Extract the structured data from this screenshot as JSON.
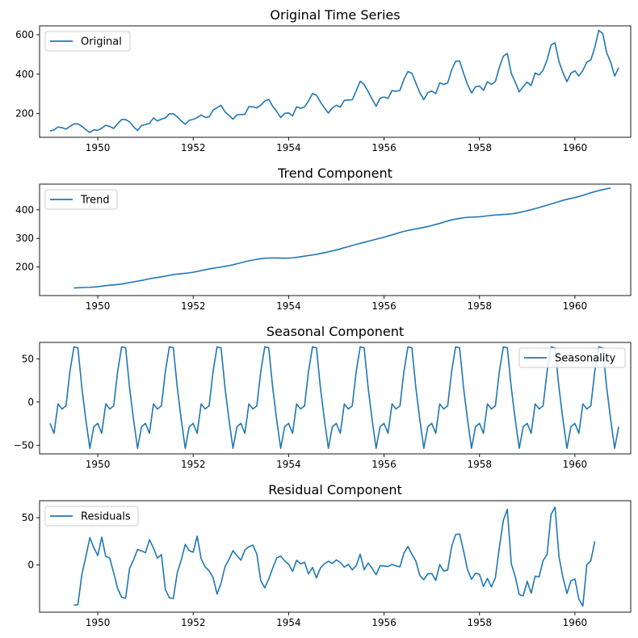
{
  "colors": {
    "line": "#1f77b4",
    "axes": "#000000",
    "legend_border": "#cccccc",
    "background": "#ffffff"
  },
  "chart_data": [
    {
      "type": "line",
      "title": "Original Time Series",
      "xlabel": "",
      "ylabel": "",
      "xlim": [
        1948.78,
        1961.17
      ],
      "ylim": [
        80,
        645
      ],
      "xticks": [
        1950,
        1952,
        1954,
        1956,
        1958,
        1960
      ],
      "yticks": [
        200,
        400,
        600
      ],
      "grid": false,
      "legend_position": "upper-left",
      "series": [
        {
          "name": "Original",
          "x_start": 1949.0,
          "x_step": 0.0833333,
          "values": [
            112,
            118,
            132,
            129,
            121,
            135,
            148,
            148,
            136,
            119,
            104,
            118,
            115,
            126,
            141,
            135,
            125,
            149,
            170,
            170,
            158,
            133,
            114,
            140,
            145,
            150,
            178,
            163,
            172,
            178,
            199,
            199,
            184,
            162,
            146,
            166,
            171,
            180,
            193,
            181,
            183,
            218,
            230,
            242,
            209,
            191,
            172,
            194,
            196,
            196,
            236,
            235,
            229,
            243,
            264,
            272,
            237,
            211,
            180,
            201,
            204,
            188,
            235,
            227,
            234,
            264,
            302,
            293,
            259,
            229,
            203,
            229,
            242,
            233,
            267,
            269,
            270,
            315,
            364,
            347,
            312,
            274,
            237,
            278,
            284,
            277,
            317,
            313,
            318,
            374,
            413,
            405,
            355,
            306,
            271,
            306,
            315,
            301,
            356,
            348,
            355,
            422,
            465,
            467,
            404,
            347,
            305,
            336,
            340,
            318,
            362,
            348,
            363,
            435,
            491,
            505,
            404,
            359,
            310,
            337,
            360,
            342,
            406,
            396,
            420,
            472,
            548,
            559,
            463,
            407,
            362,
            405,
            417,
            391,
            419,
            461,
            472,
            535,
            622,
            606,
            508,
            461,
            390,
            432
          ]
        }
      ]
    },
    {
      "type": "line",
      "title": "Trend Component",
      "xlabel": "",
      "ylabel": "",
      "xlim": [
        1948.78,
        1961.17
      ],
      "ylim": [
        100,
        490
      ],
      "xticks": [
        1950,
        1952,
        1954,
        1956,
        1958,
        1960
      ],
      "yticks": [
        200,
        300,
        400
      ],
      "grid": false,
      "legend_position": "upper-left",
      "series": [
        {
          "name": "Trend",
          "x_start": 1949.5,
          "x_step": 0.0833333,
          "values": [
            126.8,
            127.3,
            127.9,
            128.6,
            129.0,
            129.8,
            131.3,
            133.1,
            134.9,
            136.3,
            137.4,
            138.8,
            140.5,
            142.9,
            145.5,
            148.0,
            150.5,
            152.8,
            155.8,
            158.9,
            161.3,
            163.3,
            165.6,
            168.2,
            171.0,
            173.3,
            175.2,
            176.8,
            178.0,
            179.5,
            181.6,
            184.4,
            187.4,
            190.3,
            193.1,
            195.6,
            197.8,
            200.0,
            202.3,
            204.9,
            207.8,
            211.2,
            214.8,
            218.3,
            221.5,
            224.3,
            226.8,
            229.0,
            230.5,
            231.4,
            231.7,
            231.6,
            231.2,
            231.0,
            231.2,
            232.1,
            233.8,
            235.9,
            238.0,
            240.0,
            242.0,
            244.4,
            247.1,
            250.0,
            253.2,
            256.3,
            259.5,
            263.4,
            267.6,
            271.4,
            275.3,
            279.1,
            282.9,
            286.4,
            290.1,
            293.6,
            297.2,
            300.6,
            304.2,
            308.2,
            312.4,
            316.7,
            320.8,
            324.6,
            327.8,
            330.7,
            333.3,
            335.9,
            338.7,
            341.8,
            345.1,
            348.9,
            352.8,
            357.0,
            361.2,
            364.8,
            367.6,
            370.1,
            372.4,
            373.8,
            374.5,
            374.9,
            375.8,
            377.3,
            379.1,
            380.6,
            381.9,
            382.9,
            383.7,
            384.5,
            385.8,
            387.7,
            390.6,
            393.9,
            397.0,
            400.4,
            404.1,
            408.1,
            412.4,
            416.5,
            420.5,
            424.7,
            429.0,
            433.3,
            436.9,
            440.1,
            443.2,
            446.8,
            450.9,
            455.3,
            459.6,
            463.7,
            467.5,
            470.8,
            473.6,
            476.3
          ]
        }
      ]
    },
    {
      "type": "line",
      "title": "Seasonal Component",
      "xlabel": "",
      "ylabel": "",
      "xlim": [
        1948.78,
        1961.17
      ],
      "ylim": [
        -60,
        69
      ],
      "xticks": [
        1950,
        1952,
        1954,
        1956,
        1958,
        1960
      ],
      "yticks": [
        -50,
        0,
        50
      ],
      "grid": false,
      "legend_position": "upper-right",
      "series": [
        {
          "name": "Seasonality",
          "x_start": 1949.0,
          "x_step": 0.0833333,
          "pattern": [
            -24.7,
            -36.2,
            -2.2,
            -8.0,
            -4.5,
            35.4,
            63.8,
            62.8,
            16.5,
            -20.6,
            -53.6,
            -28.6
          ],
          "periods": 12
        }
      ]
    },
    {
      "type": "line",
      "title": "Residual Component",
      "xlabel": "",
      "ylabel": "",
      "xlim": [
        1948.78,
        1961.17
      ],
      "ylim": [
        -50,
        68
      ],
      "xticks": [
        1950,
        1952,
        1954,
        1956,
        1958,
        1960
      ],
      "yticks": [
        0,
        50
      ],
      "grid": false,
      "legend_position": "upper-left",
      "series": [
        {
          "name": "Residuals",
          "x_start": 1949.5,
          "x_step": 0.0833333,
          "values": [
            -42.6,
            -42.1,
            -10.0,
            8.6,
            28.9,
            18.5,
            9.9,
            29.4,
            9.0,
            7.4,
            -8.3,
            -25.0,
            -34.2,
            -35.5,
            -3.6,
            5.4,
            16.4,
            14.9,
            13.0,
            26.7,
            17.9,
            7.2,
            11.0,
            -26.0,
            -34.7,
            -35.5,
            -8.1,
            5.3,
            21.8,
            15.2,
            13.4,
            30.5,
            6.5,
            -2.0,
            -6.2,
            -13.5,
            -30.9,
            -19.4,
            -1.9,
            5.9,
            15.1,
            9.8,
            5.0,
            15.8,
            19.3,
            21.0,
            11.6,
            -16.7,
            -24.3,
            -14.9,
            -3.4,
            7.5,
            9.5,
            4.2,
            0.8,
            -6.9,
            5.0,
            1.2,
            2.9,
            -9.5,
            -2.6,
            -13.8,
            -3.2,
            1.1,
            4.0,
            1.5,
            5.3,
            2.7,
            -2.3,
            0.6,
            -5.2,
            -0.8,
            11.4,
            -5.1,
            2.0,
            -3.6,
            -10.4,
            -0.8,
            -1.2,
            -1.6,
            0.6,
            -0.9,
            -2.1,
            12.5,
            19.6,
            11.3,
            4.0,
            -11.3,
            -15.6,
            -9.4,
            -9.1,
            -16.5,
            0.3,
            -6.5,
            -5.5,
            19.6,
            32.2,
            32.8,
            14.8,
            -5.2,
            -15.2,
            -8.8,
            -9.9,
            -22.8,
            -14.3,
            -23.2,
            -13.5,
            18.6,
            47.1,
            58.9,
            1.4,
            -12.3,
            -31.4,
            -32.7,
            -17.3,
            -30.0,
            -11.9,
            -12.6,
            4.6,
            11.2,
            53.4,
            61.1,
            8.7,
            -13.5,
            -30.2,
            -16.8,
            -14.9,
            -36.2,
            -43.5,
            0.3,
            4.4,
            25.0
          ]
        }
      ]
    }
  ]
}
